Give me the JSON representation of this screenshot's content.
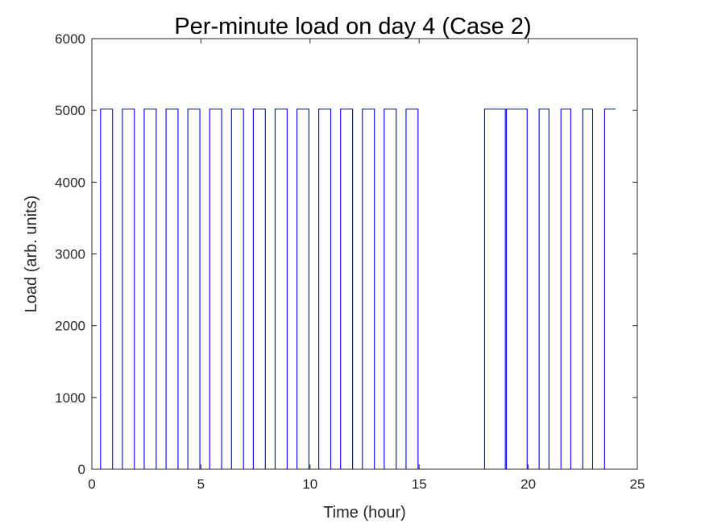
{
  "chart_data": {
    "type": "line",
    "title": "Per-minute load on day 4 (Case 2)",
    "xlabel": "Time (hour)",
    "ylabel": "Load (arb. units)",
    "xlim": [
      0,
      25
    ],
    "ylim": [
      0,
      6000
    ],
    "xticks": [
      0,
      5,
      10,
      15,
      20,
      25
    ],
    "yticks": [
      0,
      1000,
      2000,
      3000,
      4000,
      5000,
      6000
    ],
    "grid": false,
    "legend": "none",
    "series": [
      {
        "color": "#0000ff",
        "step": true,
        "x": [
          0,
          0.4,
          0.95,
          1.4,
          1.95,
          2.4,
          2.95,
          3.4,
          3.95,
          4.4,
          4.95,
          5.4,
          5.95,
          6.4,
          6.95,
          7.4,
          7.95,
          8.4,
          8.95,
          9.4,
          9.95,
          10.4,
          10.95,
          11.4,
          11.95,
          12.4,
          12.95,
          13.4,
          13.95,
          14.4,
          14.95,
          18,
          18.95,
          19,
          19.95,
          20.5,
          20.95,
          21.5,
          21.95,
          22.5,
          22.95,
          23.5,
          24
        ],
        "y": [
          0,
          5020,
          0,
          5020,
          0,
          5020,
          0,
          5020,
          0,
          5020,
          0,
          5020,
          0,
          5020,
          0,
          5020,
          0,
          5020,
          0,
          5020,
          0,
          5020,
          0,
          5020,
          0,
          5020,
          0,
          5020,
          0,
          5020,
          0,
          5020,
          0,
          5020,
          0,
          5020,
          0,
          5020,
          0,
          5020,
          0,
          5020,
          5020
        ]
      }
    ]
  }
}
